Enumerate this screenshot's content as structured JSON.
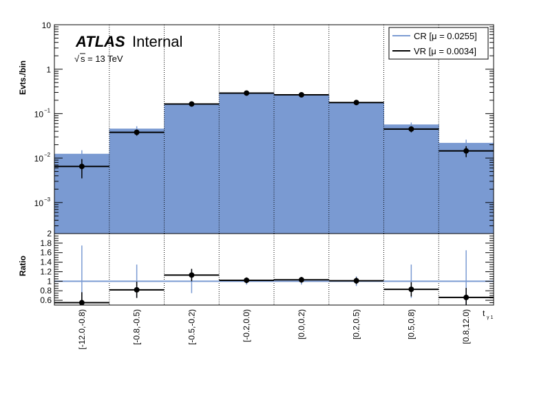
{
  "chart_data": [
    {
      "type": "histogram",
      "ylabel": "Evts./bin",
      "yscale": "log",
      "ylim": [
        0.0002,
        10
      ],
      "yticks": [
        {
          "v": 10,
          "label": "10"
        },
        {
          "v": 1,
          "label": "1"
        },
        {
          "v": 0.1,
          "label": "10",
          "exp": "−1"
        },
        {
          "v": 0.01,
          "label": "10",
          "exp": "−2"
        },
        {
          "v": 0.001,
          "label": "10",
          "exp": "−3"
        }
      ],
      "categories": [
        "[-12.0,-0.8)",
        "[-0.8,-0.5)",
        "[-0.5,-0.2)",
        "[-0.2,0.0)",
        "[0.0,0.2)",
        "[0.2,0.5)",
        "[0.5,0.8)",
        "[0.8,12.0)"
      ],
      "annotations": {
        "brand": "ATLAS",
        "status": "Internal",
        "energy": "s = 13 TeV"
      },
      "legend_position": "top-right",
      "series": [
        {
          "name": "CR [μ = 0.0255]",
          "style": "filled",
          "color": "#7a9ad2",
          "values": [
            0.0125,
            0.046,
            0.162,
            0.29,
            0.26,
            0.175,
            0.057,
            0.022
          ],
          "errors": [
            0.0025,
            0.006,
            0.012,
            0.018,
            0.016,
            0.012,
            0.006,
            0.004
          ]
        },
        {
          "name": "VR [μ = 0.0034]",
          "style": "points",
          "color": "#000000",
          "values": [
            0.0065,
            0.038,
            0.165,
            0.29,
            0.265,
            0.178,
            0.045,
            0.0145
          ],
          "errors": [
            0.003,
            0.006,
            0.02,
            0.025,
            0.022,
            0.02,
            0.007,
            0.004
          ]
        }
      ]
    },
    {
      "type": "ratio",
      "ylabel": "Ratio",
      "xlabel": "t",
      "xlabel_sub": "γ 1",
      "ylim": [
        0.5,
        2
      ],
      "yticks": [
        "0.6",
        "0.8",
        "1",
        "1.2",
        "1.4",
        "1.6",
        "1.8",
        "2"
      ],
      "reference": 1,
      "reference_color": "#7a9ad2",
      "values": [
        0.55,
        0.82,
        1.13,
        1.02,
        1.03,
        1.01,
        0.83,
        0.66
      ],
      "errors_blue": [
        0.75,
        0.35,
        0.25,
        0.07,
        0.07,
        0.1,
        0.35,
        0.65
      ],
      "errors_black": [
        0.22,
        0.17,
        0.13,
        0.06,
        0.06,
        0.07,
        0.15,
        0.2
      ]
    }
  ]
}
